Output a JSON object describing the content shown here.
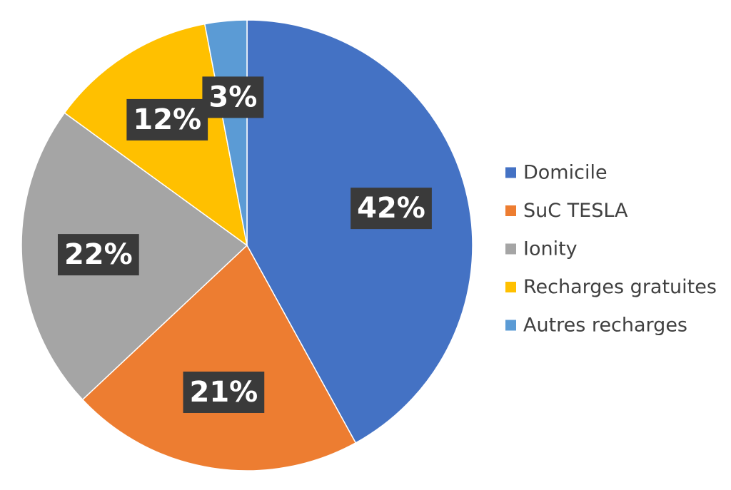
{
  "chart_data": {
    "type": "pie",
    "title": "",
    "categories": [
      "Domicile",
      "SuC TESLA",
      "Ionity",
      "Recharges gratuites",
      "Autres recharges"
    ],
    "values": [
      42,
      21,
      22,
      12,
      3
    ],
    "data_labels": [
      "42%",
      "21%",
      "22%",
      "12%",
      "3%"
    ],
    "unit": "%",
    "colors": [
      "#4472C4",
      "#ED7D31",
      "#A5A5A5",
      "#FFC000",
      "#5B9BD5"
    ],
    "start_angle_deg": 0,
    "direction": "clockwise",
    "legend_position": "right"
  }
}
